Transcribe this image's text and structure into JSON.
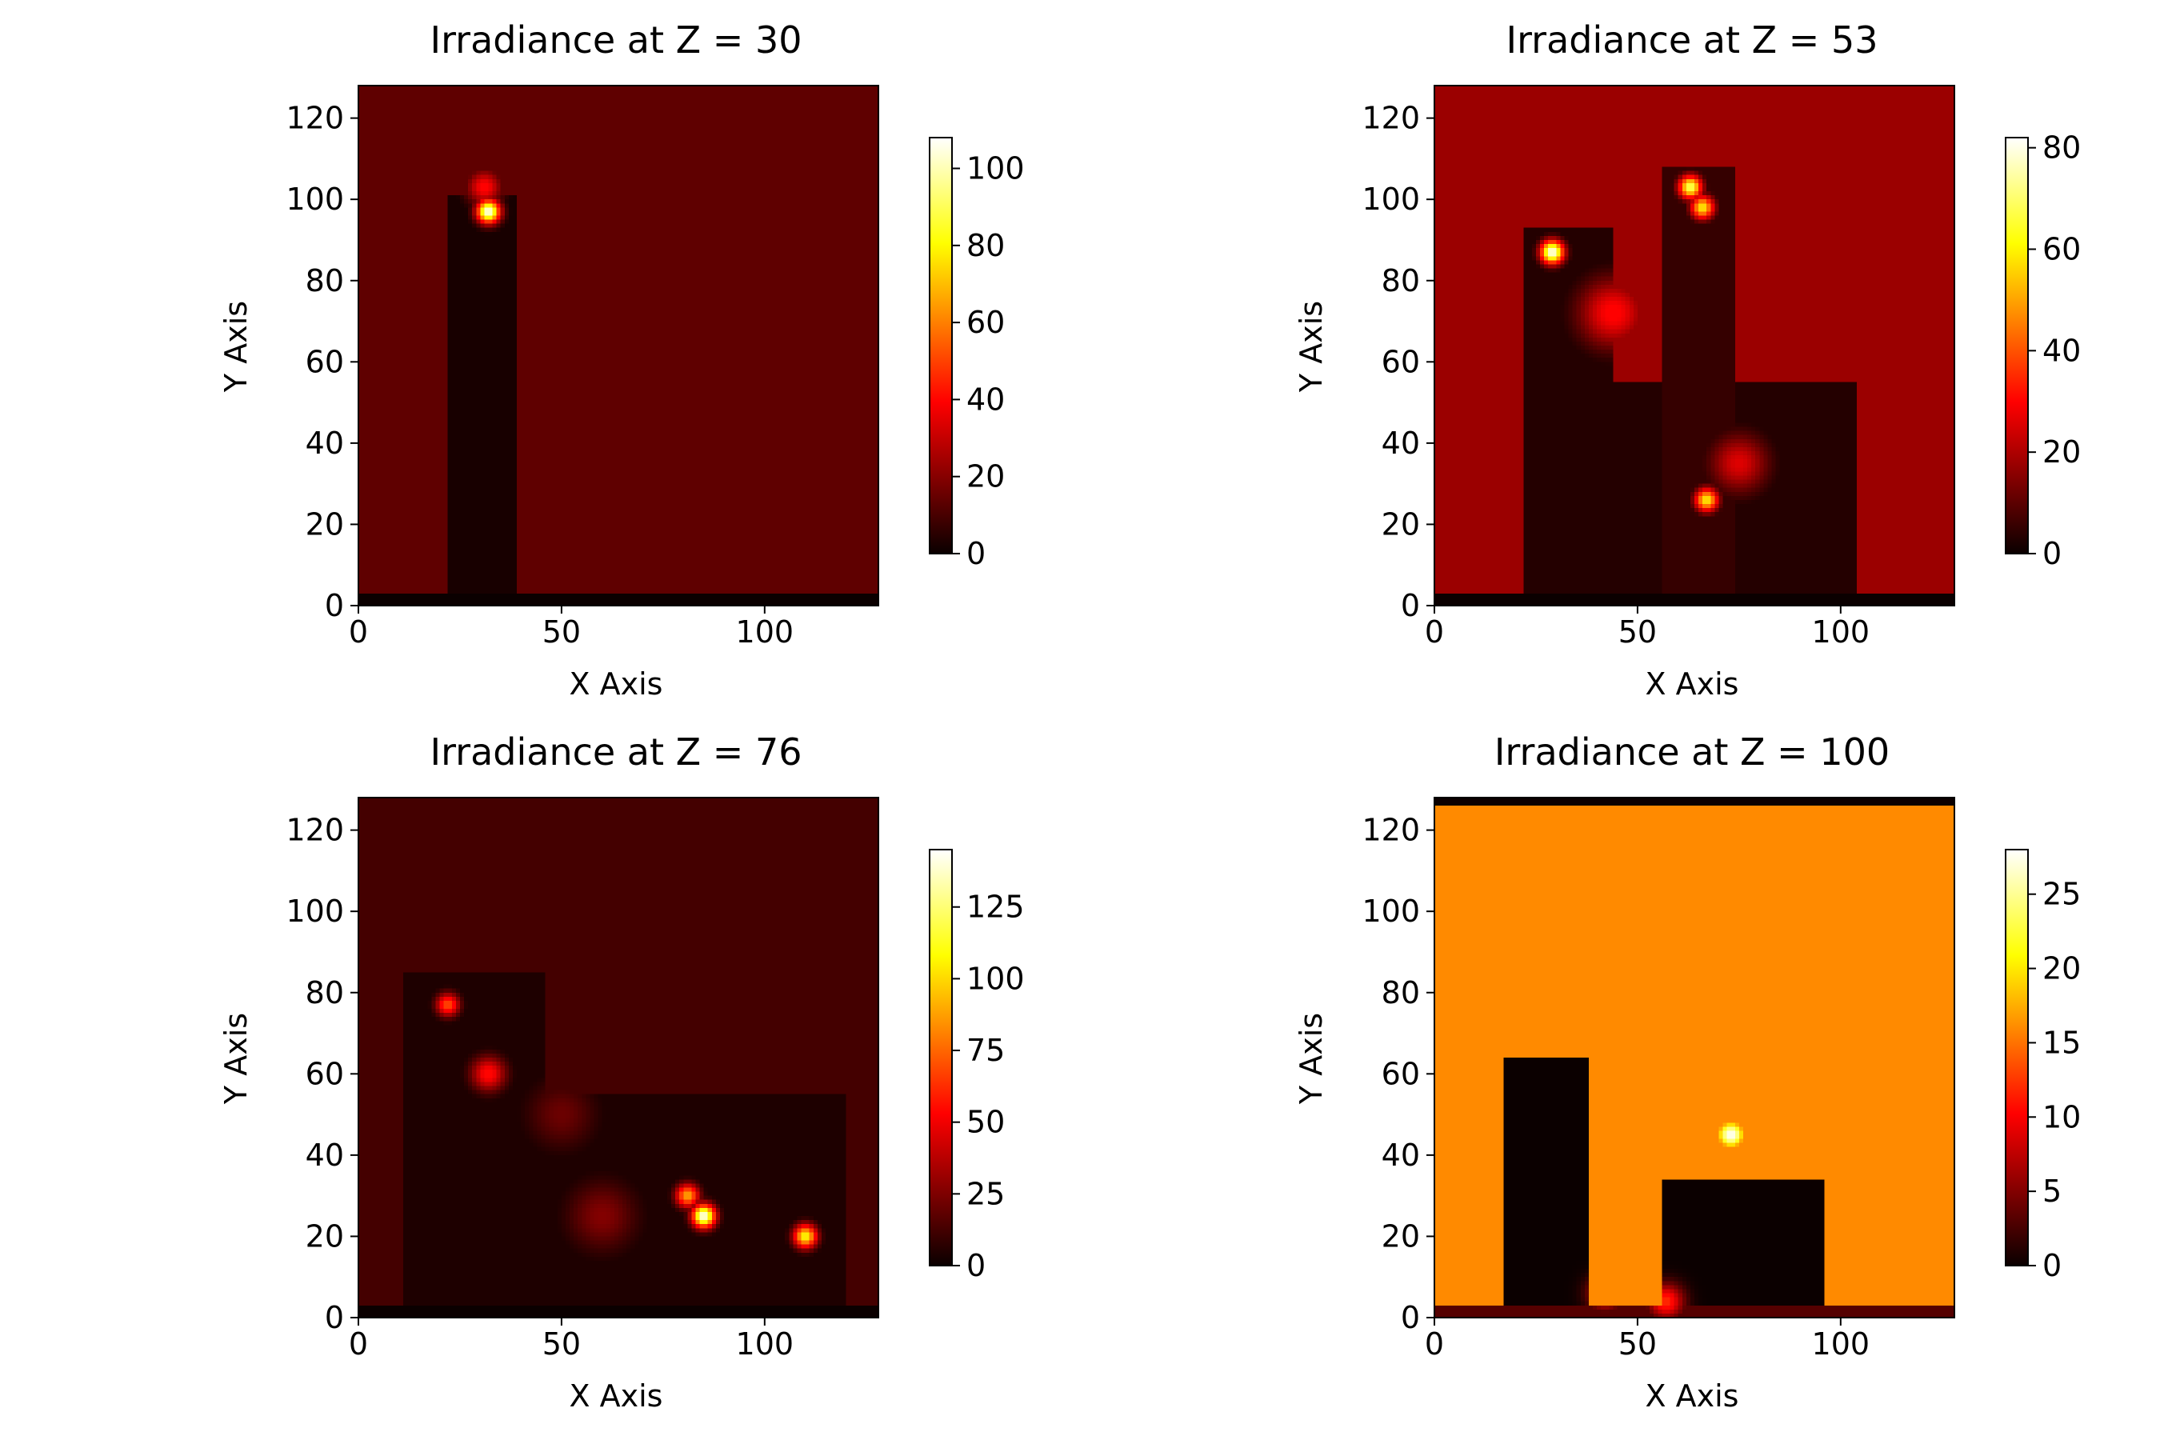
{
  "chart_data": [
    {
      "type": "heatmap",
      "title": "Irradiance at Z = 30",
      "xlabel": "X Axis",
      "ylabel": "Y Axis",
      "xlim": [
        0,
        128
      ],
      "ylim": [
        0,
        128
      ],
      "xticks": [
        0,
        50,
        100
      ],
      "yticks": [
        0,
        20,
        40,
        60,
        80,
        100,
        120
      ],
      "colormap": "hot",
      "colorbar": {
        "min": 0,
        "max": 108,
        "ticks": [
          0,
          20,
          40,
          60,
          80,
          100
        ]
      },
      "background_value": 13,
      "bottom_band": {
        "y_max": 3,
        "value": 0
      },
      "shadows": [
        {
          "x_min": 22,
          "x_max": 39,
          "y_max": 101,
          "value": 2
        }
      ],
      "hotspots": [
        {
          "x": 32,
          "y": 97,
          "value": 108,
          "spread": 2
        },
        {
          "x": 31,
          "y": 103,
          "value": 40,
          "spread": 3
        }
      ]
    },
    {
      "type": "heatmap",
      "title": "Irradiance at Z = 53",
      "xlabel": "X Axis",
      "ylabel": "Y Axis",
      "xlim": [
        0,
        128
      ],
      "ylim": [
        0,
        128
      ],
      "xticks": [
        0,
        50,
        100
      ],
      "yticks": [
        0,
        20,
        40,
        60,
        80,
        100,
        120
      ],
      "colormap": "hot",
      "colorbar": {
        "min": 0,
        "max": 82,
        "ticks": [
          0,
          20,
          40,
          60,
          80
        ]
      },
      "background_value": 17,
      "bottom_band": {
        "y_max": 3,
        "value": 0
      },
      "shadows": [
        {
          "x_min": 22,
          "x_max": 104,
          "y_max": 55,
          "value": 3
        },
        {
          "x_min": 22,
          "x_max": 44,
          "y_max": 93,
          "value": 3
        },
        {
          "x_min": 56,
          "x_max": 74,
          "y_max": 108,
          "value": 5
        }
      ],
      "hotspots": [
        {
          "x": 29,
          "y": 87,
          "value": 82,
          "spread": 2
        },
        {
          "x": 63,
          "y": 103,
          "value": 70,
          "spread": 2
        },
        {
          "x": 66,
          "y": 98,
          "value": 60,
          "spread": 2
        },
        {
          "x": 67,
          "y": 26,
          "value": 60,
          "spread": 2
        },
        {
          "x": 44,
          "y": 72,
          "value": 30,
          "spread": 6
        },
        {
          "x": 75,
          "y": 35,
          "value": 25,
          "spread": 5
        }
      ]
    },
    {
      "type": "heatmap",
      "title": "Irradiance at Z = 76",
      "xlabel": "X Axis",
      "ylabel": "Y Axis",
      "xlim": [
        0,
        128
      ],
      "ylim": [
        0,
        128
      ],
      "xticks": [
        0,
        50,
        100
      ],
      "yticks": [
        0,
        20,
        40,
        60,
        80,
        100,
        120
      ],
      "colormap": "hot",
      "colorbar": {
        "min": 0,
        "max": 145,
        "ticks": [
          0,
          25,
          50,
          75,
          100,
          125
        ]
      },
      "background_value": 12,
      "bottom_band": {
        "y_max": 3,
        "value": 0
      },
      "shadows": [
        {
          "x_min": 11,
          "x_max": 120,
          "y_max": 55,
          "value": 4
        },
        {
          "x_min": 11,
          "x_max": 46,
          "y_max": 85,
          "value": 4
        }
      ],
      "hotspots": [
        {
          "x": 22,
          "y": 77,
          "value": 70,
          "spread": 2
        },
        {
          "x": 32,
          "y": 60,
          "value": 55,
          "spread": 3
        },
        {
          "x": 85,
          "y": 25,
          "value": 145,
          "spread": 2
        },
        {
          "x": 81,
          "y": 30,
          "value": 90,
          "spread": 2
        },
        {
          "x": 110,
          "y": 20,
          "value": 110,
          "spread": 2
        },
        {
          "x": 60,
          "y": 25,
          "value": 25,
          "spread": 6
        },
        {
          "x": 50,
          "y": 50,
          "value": 20,
          "spread": 6
        }
      ]
    },
    {
      "type": "heatmap",
      "title": "Irradiance at Z = 100",
      "xlabel": "X Axis",
      "ylabel": "Y Axis",
      "xlim": [
        0,
        128
      ],
      "ylim": [
        0,
        128
      ],
      "xticks": [
        0,
        50,
        100
      ],
      "yticks": [
        0,
        20,
        40,
        60,
        80,
        100,
        120
      ],
      "colormap": "hot",
      "colorbar": {
        "min": 0,
        "max": 28,
        "ticks": [
          0,
          5,
          10,
          15,
          20,
          25
        ]
      },
      "background_value": 16,
      "bottom_band": {
        "y_max": 3,
        "value": 3
      },
      "top_band": {
        "y_min": 126,
        "value": 0
      },
      "shadows": [
        {
          "x_min": 17,
          "x_max": 38,
          "y_max": 64,
          "value": 0
        },
        {
          "x_min": 56,
          "x_max": 96,
          "y_max": 34,
          "value": 0
        }
      ],
      "hotspots": [
        {
          "x": 73,
          "y": 45,
          "value": 28,
          "spread": 3
        },
        {
          "x": 57,
          "y": 4,
          "value": 12,
          "spread": 3
        },
        {
          "x": 42,
          "y": 6,
          "value": 10,
          "spread": 3
        }
      ]
    }
  ]
}
